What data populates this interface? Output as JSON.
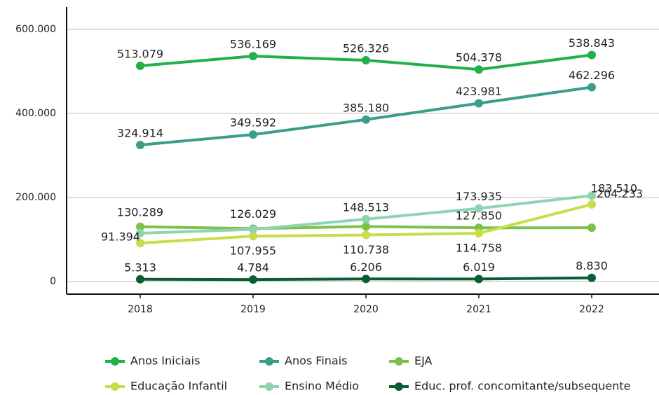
{
  "chart_data": {
    "type": "line",
    "categories": [
      "2018",
      "2019",
      "2020",
      "2021",
      "2022"
    ],
    "ylim": [
      -30000,
      653000
    ],
    "yticks": [
      0,
      {
        "value": 200000,
        "label": "200.000"
      },
      {
        "value": 400000,
        "label": "400.000"
      },
      {
        "value": 600000,
        "label": "600.000"
      }
    ],
    "grid": true,
    "series": [
      {
        "name": "Anos Iniciais",
        "color": "#22b04b",
        "values": [
          513079,
          536169,
          526326,
          504378,
          538843
        ],
        "value_labels": [
          "513.079",
          "536.169",
          "526.326",
          "504.378",
          "538.843"
        ]
      },
      {
        "name": "Anos Finais",
        "color": "#3a9e8a",
        "values": [
          324914,
          349592,
          385180,
          423981,
          462296
        ],
        "value_labels": [
          "324.914",
          "349.592",
          "385.180",
          "423.981",
          "462.296"
        ]
      },
      {
        "name": "EJA",
        "color": "#7cc24a",
        "values": [
          130289,
          126029,
          131000,
          127850,
          128000
        ],
        "value_labels": [
          "130.289",
          "126.029",
          null,
          "127.850",
          null
        ]
      },
      {
        "name": "Educação Infantil",
        "color": "#c9dc4a",
        "values": [
          91394,
          107955,
          110738,
          114758,
          183510
        ],
        "value_labels": [
          "91.394",
          "107.955",
          "110.738",
          "114.758",
          "183.510"
        ]
      },
      {
        "name": "Ensino Médio",
        "color": "#8fd4b0",
        "values": [
          115000,
          124000,
          148513,
          173935,
          204233
        ],
        "value_labels": [
          null,
          null,
          "148.513",
          "173.935",
          "204.233"
        ]
      },
      {
        "name": "Educ. prof. concomitante/subsequente",
        "color": "#0b5e34",
        "values": [
          5313,
          4784,
          6206,
          6019,
          8830
        ],
        "value_labels": [
          "5.313",
          "4.784",
          "6.206",
          "6.019",
          "8.830"
        ]
      }
    ]
  }
}
